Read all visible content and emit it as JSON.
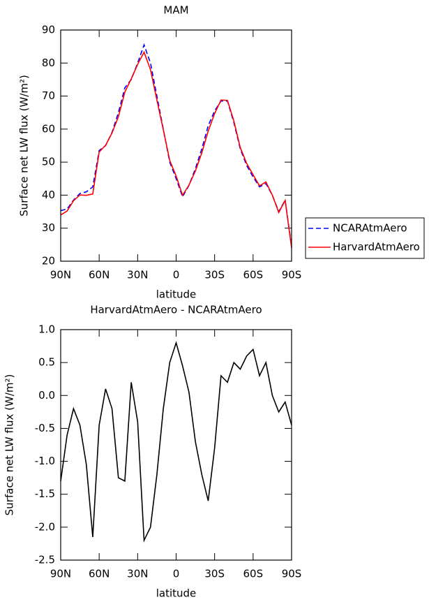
{
  "chart_data": [
    {
      "type": "line",
      "title": "MAM",
      "xlabel": "latitude",
      "ylabel": "Surface net LW flux (W/m²)",
      "x": [
        90,
        85,
        80,
        75,
        70,
        65,
        60,
        55,
        50,
        45,
        40,
        35,
        30,
        25,
        20,
        15,
        10,
        5,
        0,
        -5,
        -10,
        -15,
        -20,
        -25,
        -30,
        -35,
        -40,
        -45,
        -50,
        -55,
        -60,
        -65,
        -70,
        -75,
        -80,
        -85,
        -90
      ],
      "series": [
        {
          "name": "NCARAtmAero",
          "color": "#0000ff",
          "line_style": "dashed",
          "values": [
            35.3,
            35.8,
            38.5,
            40.5,
            41,
            42.5,
            53.5,
            55,
            59,
            65,
            72.5,
            75,
            80,
            85.5,
            80,
            70,
            60,
            50,
            45,
            39.5,
            43,
            48,
            54,
            61,
            65.5,
            68.5,
            68.5,
            62,
            54,
            49,
            45.5,
            42.5,
            43.5,
            40,
            35,
            38.5,
            24.5
          ]
        },
        {
          "name": "HarvardAtmAero",
          "color": "#ff0000",
          "line_style": "solid",
          "values": [
            34.0,
            35.2,
            38.3,
            40.05,
            39.95,
            40.35,
            53.05,
            55.1,
            58.8,
            63.75,
            71.2,
            75.2,
            79.6,
            83.3,
            78,
            68.8,
            59.8,
            50.5,
            45.8,
            39.95,
            43.05,
            47.3,
            52.8,
            59.4,
            64.7,
            68.8,
            68.7,
            62.5,
            54.4,
            49.6,
            46.2,
            42.8,
            44,
            40,
            34.75,
            38.4,
            24.05
          ]
        }
      ],
      "xlim": [
        90,
        -90
      ],
      "xticks": [
        {
          "value": 90,
          "label": "90N"
        },
        {
          "value": 60,
          "label": "60N"
        },
        {
          "value": 30,
          "label": "30N"
        },
        0,
        {
          "value": -30,
          "label": "30S"
        },
        {
          "value": -60,
          "label": "60S"
        },
        {
          "value": -90,
          "label": "90S"
        }
      ],
      "ylim": [
        20,
        90
      ],
      "yticks": [
        20,
        30,
        40,
        50,
        60,
        70,
        80,
        90
      ],
      "legend": "outside-right"
    },
    {
      "type": "line",
      "title": "HarvardAtmAero - NCARAtmAero",
      "xlabel": "latitude",
      "ylabel": "Surface net LW flux (W/m²)",
      "x": [
        90,
        85,
        80,
        75,
        70,
        65,
        60,
        55,
        50,
        45,
        40,
        35,
        30,
        25,
        20,
        15,
        10,
        5,
        0,
        -5,
        -10,
        -15,
        -20,
        -25,
        -30,
        -35,
        -40,
        -45,
        -50,
        -55,
        -60,
        -65,
        -70,
        -75,
        -80,
        -85,
        -90
      ],
      "values": [
        -1.3,
        -0.6,
        -0.2,
        -0.45,
        -1.05,
        -2.15,
        -0.45,
        0.1,
        -0.2,
        -1.25,
        -1.3,
        0.2,
        -0.4,
        -2.2,
        -2.0,
        -1.2,
        -0.2,
        0.5,
        0.8,
        0.45,
        0.05,
        -0.7,
        -1.2,
        -1.6,
        -0.8,
        0.3,
        0.2,
        0.5,
        0.4,
        0.6,
        0.7,
        0.3,
        0.5,
        0.0,
        -0.25,
        -0.1,
        -0.45
      ],
      "color": "#000000",
      "xlim": [
        90,
        -90
      ],
      "xticks": [
        {
          "value": 90,
          "label": "90N"
        },
        {
          "value": 60,
          "label": "60N"
        },
        {
          "value": 30,
          "label": "30N"
        },
        0,
        {
          "value": -30,
          "label": "30S"
        },
        {
          "value": -60,
          "label": "60S"
        },
        {
          "value": -90,
          "label": "90S"
        }
      ],
      "ylim": [
        -2.5,
        1
      ],
      "yticks": [
        -2.5,
        {
          "value": -2,
          "label": "-2.0"
        },
        -1.5,
        {
          "value": -1,
          "label": "-1.0"
        },
        -0.5,
        {
          "value": 0,
          "label": "0.0"
        },
        0.5,
        {
          "value": 1,
          "label": "1.0"
        }
      ]
    }
  ]
}
